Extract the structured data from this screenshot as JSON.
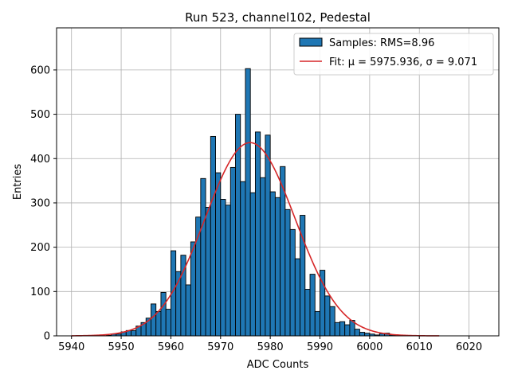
{
  "chart_data": {
    "type": "bar",
    "title": "Run 523, channel102, Pedestal",
    "xlabel": "ADC Counts",
    "ylabel": "Entries",
    "xlim": [
      5937,
      6026
    ],
    "ylim": [
      0,
      695
    ],
    "xticks": [
      5940,
      5950,
      5960,
      5970,
      5980,
      5990,
      6000,
      6010,
      6020
    ],
    "yticks": [
      0,
      100,
      200,
      300,
      400,
      500,
      600
    ],
    "grid": true,
    "legend_position": "top-right",
    "colors": {
      "bars": "#1f77b4",
      "bar_edge": "#000000",
      "fit": "#d62728",
      "grid": "#b0b0b0"
    },
    "histogram": {
      "name": "Samples: RMS=8.96",
      "x_start": 5940,
      "bin_width": 1,
      "counts": [
        0,
        0,
        0,
        0,
        0,
        0,
        0,
        1,
        4,
        4,
        9,
        12,
        12,
        22,
        30,
        40,
        72,
        55,
        98,
        60,
        192,
        145,
        182,
        115,
        212,
        268,
        355,
        290,
        450,
        368,
        308,
        295,
        380,
        500,
        348,
        603,
        323,
        460,
        357,
        453,
        325,
        312,
        382,
        285,
        240,
        174,
        272,
        105,
        139,
        55,
        148,
        90,
        66,
        30,
        32,
        25,
        35,
        15,
        8,
        6,
        4,
        2,
        5,
        6,
        2,
        1,
        0,
        0,
        0,
        0,
        0,
        0,
        0,
        0
      ]
    },
    "fit": {
      "name": "Fit: μ = 5975.936, σ = 9.071",
      "mu": 5975.936,
      "sigma": 9.071,
      "amplitude": 436,
      "x_range": [
        5940,
        6014
      ]
    }
  }
}
